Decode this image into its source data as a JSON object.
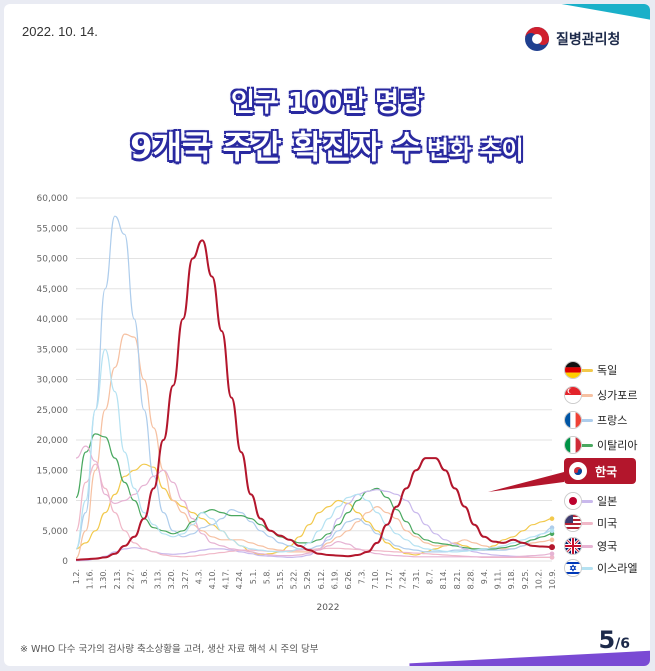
{
  "date": "2022. 10. 14.",
  "agency": "질병관리청",
  "title_line1": "인구 100만 명당",
  "title_line2_big": "9개국 주간 확진자 수",
  "title_line2_small": "변화 추이",
  "footnote": "※ WHO 다수 국가의 검사량 축소상황을 고려, 생산 자료 해석 시 주의 당부",
  "page_current": "5",
  "page_total": "/6",
  "korea_highlight_label": "한국",
  "chart_data": {
    "type": "line",
    "title": "",
    "xlabel": "2022",
    "ylabel": "",
    "ylim": [
      0,
      60000
    ],
    "yticks": [
      "0",
      "5,000",
      "10,000",
      "15,000",
      "20,000",
      "25,000",
      "30,000",
      "35,000",
      "40,000",
      "45,000",
      "50,000",
      "55,000",
      "60,000"
    ],
    "x_tick_labels": [
      "1.2.",
      "1.16.",
      "1.30.",
      "2.13.",
      "2.27.",
      "3.6.",
      "3.13.",
      "3.20.",
      "3.27.",
      "4.3.",
      "4.10.",
      "4.17.",
      "4.24.",
      "5.1.",
      "5.8.",
      "5.15.",
      "5.22.",
      "5.29.",
      "6.12.",
      "6.19.",
      "6.26.",
      "7.3.",
      "7.10.",
      "7.17.",
      "7.24.",
      "7.31.",
      "8.7.",
      "8.14.",
      "8.21.",
      "8.28.",
      "9.4.",
      "9.11.",
      "9.18.",
      "9.25.",
      "10.2.",
      "10.9."
    ],
    "legend_position": "right",
    "grid": true,
    "series": [
      {
        "name": "독일",
        "color": "#f2c94c",
        "values": [
          2000,
          3000,
          5000,
          8000,
          11000,
          14000,
          15000,
          16000,
          15500,
          12000,
          10000,
          9000,
          8000,
          7000,
          6000,
          5000,
          3500,
          2500,
          1500,
          1000,
          1200,
          1500,
          2500,
          4000,
          6000,
          8000,
          9000,
          10000,
          9500,
          8000,
          6500,
          5000,
          3000,
          2000,
          1200,
          1000,
          1500,
          2000,
          2500,
          3000,
          2500,
          2000,
          1800,
          2500,
          3500,
          4000,
          5000,
          6000,
          6500,
          7000
        ]
      },
      {
        "name": "싱가포르",
        "color": "#f6c1a2",
        "values": [
          500,
          5000,
          15000,
          25000,
          32000,
          37500,
          37000,
          30000,
          22000,
          15000,
          10000,
          8000,
          6000,
          5000,
          4000,
          3500,
          3500,
          3500,
          3000,
          2500,
          2000,
          1800,
          1500,
          1500,
          1500,
          2000,
          3000,
          4000,
          5000,
          6500,
          8000,
          9000,
          8000,
          7000,
          5000,
          4000,
          3000,
          2500,
          2500,
          3000,
          3500,
          3000,
          2500,
          2200,
          2000,
          2000,
          2500,
          3000,
          3200,
          3500
        ]
      },
      {
        "name": "프랑스",
        "color": "#aecdec",
        "values": [
          2000,
          8000,
          25000,
          45000,
          57000,
          54000,
          40000,
          25000,
          14000,
          8000,
          5000,
          4000,
          4500,
          5500,
          6000,
          7000,
          8500,
          8000,
          6500,
          5000,
          4000,
          3000,
          2500,
          2000,
          2000,
          2500,
          3500,
          5000,
          6500,
          7000,
          6000,
          4500,
          3500,
          2500,
          2000,
          1800,
          1500,
          1500,
          1500,
          1800,
          1800,
          1800,
          1800,
          1800,
          1800,
          2000,
          2500,
          3500,
          4500,
          5500
        ]
      },
      {
        "name": "이탈리아",
        "color": "#4aa860",
        "values": [
          10500,
          18000,
          21000,
          20500,
          17000,
          13000,
          10000,
          7000,
          5500,
          5000,
          4500,
          5000,
          6500,
          8000,
          8500,
          8000,
          7500,
          7500,
          7000,
          6000,
          5000,
          4000,
          3500,
          3000,
          3000,
          3500,
          4500,
          6000,
          8000,
          10000,
          11500,
          12000,
          10500,
          8500,
          6500,
          4500,
          3500,
          3000,
          2800,
          2500,
          2200,
          2000,
          2000,
          2000,
          2200,
          2500,
          3000,
          3500,
          4000,
          4500
        ]
      },
      {
        "name": "한국",
        "color": "#b3162c",
        "values": [
          200,
          300,
          400,
          600,
          1200,
          2500,
          4000,
          7000,
          12000,
          20000,
          29000,
          40000,
          50000,
          53000,
          47000,
          38000,
          27000,
          18000,
          11000,
          7000,
          5000,
          4200,
          3500,
          2500,
          1800,
          1200,
          1000,
          900,
          800,
          1000,
          1500,
          3000,
          6000,
          9000,
          12000,
          15000,
          17000,
          17000,
          15000,
          12000,
          9000,
          6000,
          4000,
          3200,
          3000,
          3500,
          3000,
          2500,
          2400,
          2300
        ]
      },
      {
        "name": "일본",
        "color": "#c9b9ec",
        "values": [
          50,
          100,
          300,
          800,
          1500,
          2000,
          2200,
          2000,
          1500,
          1200,
          1100,
          1200,
          1500,
          1800,
          2000,
          2000,
          1800,
          1500,
          1200,
          900,
          800,
          700,
          600,
          700,
          1000,
          2000,
          4000,
          7000,
          9500,
          11000,
          11500,
          11800,
          11500,
          11000,
          10000,
          8000,
          6000,
          4500,
          3500,
          2800,
          2000,
          1500,
          1200,
          1000,
          900,
          800,
          700,
          600,
          600,
          600
        ]
      },
      {
        "name": "미국",
        "color": "#f0b8c8",
        "values": [
          5000,
          13000,
          16000,
          12000,
          8000,
          5000,
          3000,
          2000,
          1500,
          1000,
          800,
          700,
          800,
          1000,
          1200,
          1400,
          1600,
          1800,
          1800,
          1700,
          1600,
          1600,
          1700,
          1800,
          1900,
          2000,
          2100,
          2100,
          2000,
          1900,
          1800,
          1700,
          1600,
          1500,
          1400,
          1300,
          1200,
          1100,
          1000,
          900,
          800,
          700,
          600,
          600,
          600,
          600,
          600,
          600,
          600,
          600
        ]
      },
      {
        "name": "영국",
        "color": "#e6b3d3",
        "values": [
          17000,
          19000,
          16500,
          11000,
          9500,
          10000,
          11000,
          12500,
          14000,
          15000,
          13000,
          10000,
          7000,
          4500,
          3000,
          2500,
          2000,
          1800,
          1500,
          1200,
          1000,
          900,
          900,
          1000,
          1300,
          1800,
          2500,
          3200,
          2800,
          2000,
          1500,
          1200,
          1000,
          900,
          800,
          700,
          700,
          700,
          700,
          700,
          700,
          700,
          700,
          700,
          700,
          700,
          800,
          900,
          1000,
          1200
        ]
      },
      {
        "name": "이스라엘",
        "color": "#b5e2f2",
        "values": [
          2000,
          10000,
          25000,
          35000,
          28000,
          18000,
          12000,
          8000,
          6000,
          4500,
          4000,
          4500,
          6000,
          8000,
          7000,
          5000,
          3500,
          2500,
          2000,
          1800,
          1600,
          1500,
          1600,
          2000,
          3000,
          5000,
          7000,
          9000,
          10500,
          11000,
          10000,
          8000,
          6000,
          4500,
          3500,
          2500,
          2000,
          1800,
          1600,
          1500,
          1600,
          1800,
          2000,
          2200,
          2500,
          3000,
          3500,
          4000,
          4500,
          5000
        ]
      }
    ]
  }
}
